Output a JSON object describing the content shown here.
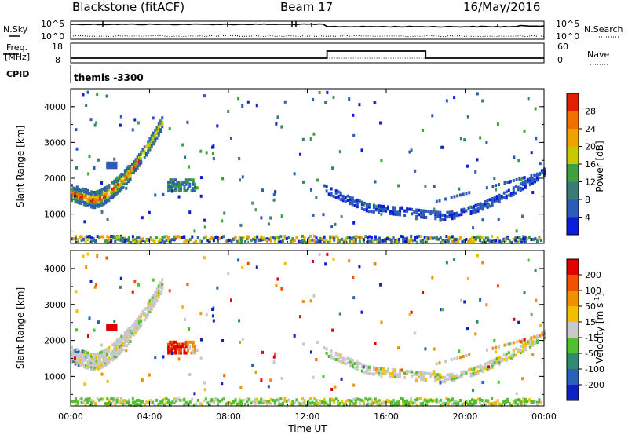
{
  "header": {
    "title": "Blackstone (fitACF)",
    "beam": "Beam 17",
    "date": "16/May/2016"
  },
  "nsky": {
    "label": "N.Sky",
    "tick_top": "10^5",
    "tick_bottom": "10^0",
    "right_label": "N.Search",
    "right_tick_top": "10^5",
    "right_tick_bottom": "10^0"
  },
  "freq": {
    "label_line1": "Freq.",
    "label_line2": "[MHz]",
    "tick_top": "18",
    "tick_bottom": "8",
    "right_label": "Nave",
    "right_tick_top": "60",
    "right_tick_bottom": "0"
  },
  "cpid": {
    "label": "CPID",
    "value": "themis -3300"
  },
  "colors": {
    "power": [
      "#0a1ed8",
      "#2d5bb8",
      "#3c7a78",
      "#3fa040",
      "#c8c800",
      "#f0a000",
      "#f07000",
      "#e02000"
    ],
    "velocity": [
      "#1020c0",
      "#2a60b8",
      "#2e8a70",
      "#50c030",
      "#c8c8c8",
      "#f0c000",
      "#f09000",
      "#f05000",
      "#e00000"
    ]
  },
  "chart_data": [
    {
      "type": "heatmap",
      "panel": "power",
      "ylabel": "Slant Range [km]",
      "yticks": [
        "4000",
        "3000",
        "2000",
        "1000"
      ],
      "ylim": [
        180,
        4500
      ],
      "xlim": [
        0,
        24
      ],
      "colorbar": {
        "label": "Power [dB]",
        "ticks": [
          "28",
          "24",
          "20",
          "16",
          "12",
          "8",
          "4"
        ],
        "range": [
          0,
          32
        ]
      }
    },
    {
      "type": "heatmap",
      "panel": "velocity",
      "ylabel": "Slant Range [km]",
      "yticks": [
        "4000",
        "3000",
        "2000",
        "1000"
      ],
      "ylim": [
        180,
        4500
      ],
      "xlim": [
        0,
        24
      ],
      "xlabel": "Time UT",
      "xticks": [
        "00:00",
        "04:00",
        "08:00",
        "12:00",
        "16:00",
        "20:00",
        "00:00"
      ],
      "colorbar": {
        "label": "Velocity [m s",
        "label_exp": "-1",
        "label_end": "]",
        "ticks": [
          "200",
          "100",
          "50",
          "15",
          "-15",
          "-50",
          "-100",
          "-200"
        ]
      }
    }
  ]
}
